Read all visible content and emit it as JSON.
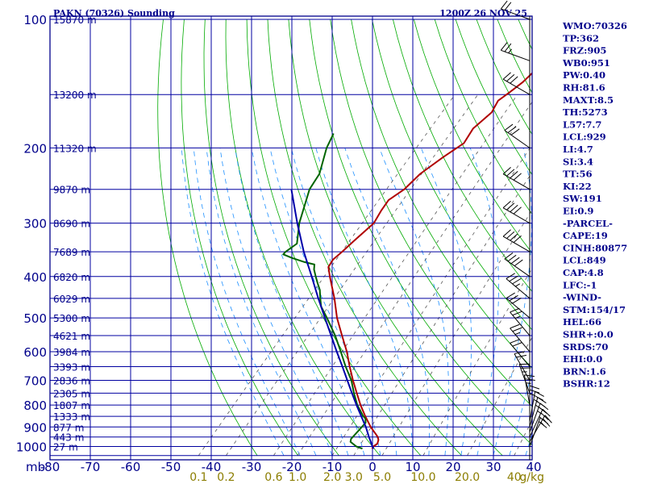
{
  "chart_data": {
    "type": "skew-t log-p sounding",
    "title_left": "PAKN (70326) Sounding",
    "title_right": "1200Z 26 NOV 25",
    "x_axis_unit_label": "mb",
    "temperature_ticks": [
      -80,
      -70,
      -60,
      -50,
      -40,
      -30,
      -20,
      -10,
      0,
      10,
      20,
      30,
      40
    ],
    "xlim_c": [
      -80,
      40
    ],
    "pressure_ticks": [
      100,
      200,
      300,
      400,
      500,
      600,
      700,
      800,
      900,
      1000
    ],
    "ylim_mb": [
      100,
      1050
    ],
    "height_labels": [
      {
        "p": 100,
        "label": "15870 m"
      },
      {
        "p": 150,
        "label": "13200 m"
      },
      {
        "p": 200,
        "label": "11320 m"
      },
      {
        "p": 250,
        "label": "9870 m"
      },
      {
        "p": 300,
        "label": "8690 m"
      },
      {
        "p": 350,
        "label": "7689 m"
      },
      {
        "p": 400,
        "label": "6820 m"
      },
      {
        "p": 450,
        "label": "6029 m"
      },
      {
        "p": 500,
        "label": "5300 m"
      },
      {
        "p": 550,
        "label": "4621 m"
      },
      {
        "p": 600,
        "label": "3984 m"
      },
      {
        "p": 650,
        "label": "3393 m"
      },
      {
        "p": 700,
        "label": "2836 m"
      },
      {
        "p": 750,
        "label": "2305 m"
      },
      {
        "p": 800,
        "label": "1807 m"
      },
      {
        "p": 850,
        "label": "1333 m"
      },
      {
        "p": 900,
        "label": "877 m"
      },
      {
        "p": 950,
        "label": "443 m"
      },
      {
        "p": 1000,
        "label": "27 m"
      }
    ],
    "mixing_ratio_labels": [
      "0.1",
      "0.2",
      "0.6",
      "1.0",
      "2.0",
      "3.0",
      "5.0",
      "10.0",
      "20.0",
      "40",
      "g/kg"
    ],
    "mixing_ratio_values": [
      0.1,
      0.2,
      0.6,
      1.0,
      2.0,
      3.0,
      5.0,
      10.0,
      20.0,
      40.0
    ],
    "series": [
      {
        "name": "temperature",
        "color": "#b00000",
        "points": [
          {
            "p": 1012,
            "t": 0.4
          },
          {
            "p": 1000,
            "t": 0.2
          },
          {
            "p": 985,
            "t": 0.6
          },
          {
            "p": 965,
            "t": 0.0
          },
          {
            "p": 950,
            "t": -0.8
          },
          {
            "p": 900,
            "t": -4.8
          },
          {
            "p": 850,
            "t": -8.5
          },
          {
            "p": 800,
            "t": -12.2
          },
          {
            "p": 750,
            "t": -15.8
          },
          {
            "p": 700,
            "t": -19.6
          },
          {
            "p": 650,
            "t": -23.5
          },
          {
            "p": 600,
            "t": -27.5
          },
          {
            "p": 550,
            "t": -32.3
          },
          {
            "p": 500,
            "t": -37.5
          },
          {
            "p": 450,
            "t": -42.5
          },
          {
            "p": 400,
            "t": -48.5
          },
          {
            "p": 380,
            "t": -51.0
          },
          {
            "p": 365,
            "t": -51.5
          },
          {
            "p": 350,
            "t": -51.0
          },
          {
            "p": 330,
            "t": -50.5
          },
          {
            "p": 300,
            "t": -49.5
          },
          {
            "p": 280,
            "t": -50.5
          },
          {
            "p": 265,
            "t": -51.0
          },
          {
            "p": 250,
            "t": -49.5
          },
          {
            "p": 230,
            "t": -49.0
          },
          {
            "p": 210,
            "t": -47.0
          },
          {
            "p": 195,
            "t": -45.0
          },
          {
            "p": 180,
            "t": -46.0
          },
          {
            "p": 165,
            "t": -45.0
          },
          {
            "p": 155,
            "t": -46.0
          },
          {
            "p": 148,
            "t": -45.0
          },
          {
            "p": 140,
            "t": -44.0
          },
          {
            "p": 120,
            "t": -43.0
          },
          {
            "p": 100,
            "t": -40.0
          }
        ]
      },
      {
        "name": "dewpoint",
        "color": "#006400",
        "points": [
          {
            "p": 1012,
            "t": -2.0
          },
          {
            "p": 1000,
            "t": -4.0
          },
          {
            "p": 975,
            "t": -6.5
          },
          {
            "p": 960,
            "t": -7.0
          },
          {
            "p": 950,
            "t": -7.0
          },
          {
            "p": 900,
            "t": -7.0
          },
          {
            "p": 880,
            "t": -7.0
          },
          {
            "p": 860,
            "t": -8.0
          },
          {
            "p": 850,
            "t": -9.0
          },
          {
            "p": 800,
            "t": -13.0
          },
          {
            "p": 750,
            "t": -16.5
          },
          {
            "p": 700,
            "t": -20.0
          },
          {
            "p": 650,
            "t": -24.5
          },
          {
            "p": 600,
            "t": -29.0
          },
          {
            "p": 550,
            "t": -34.0
          },
          {
            "p": 500,
            "t": -40.0
          },
          {
            "p": 470,
            "t": -44.0
          },
          {
            "p": 455,
            "t": -45.5
          },
          {
            "p": 445,
            "t": -46.5
          },
          {
            "p": 430,
            "t": -48.0
          },
          {
            "p": 415,
            "t": -50.0
          },
          {
            "p": 400,
            "t": -52.0
          },
          {
            "p": 385,
            "t": -54.0
          },
          {
            "p": 375,
            "t": -55.0
          },
          {
            "p": 370,
            "t": -58.0
          },
          {
            "p": 362,
            "t": -62.0
          },
          {
            "p": 355,
            "t": -65.0
          },
          {
            "p": 350,
            "t": -65.0
          },
          {
            "p": 335,
            "t": -64.0
          },
          {
            "p": 300,
            "t": -68.0
          },
          {
            "p": 250,
            "t": -73.0
          },
          {
            "p": 230,
            "t": -74.0
          },
          {
            "p": 200,
            "t": -78.0
          },
          {
            "p": 185,
            "t": -79.5
          }
        ]
      },
      {
        "name": "parcel",
        "color": "#0000aa",
        "points": [
          {
            "p": 1012,
            "t": 0.8
          },
          {
            "p": 1000,
            "t": 0.0
          },
          {
            "p": 950,
            "t": -3.0
          },
          {
            "p": 900,
            "t": -6.0
          },
          {
            "p": 850,
            "t": -9.5
          },
          {
            "p": 800,
            "t": -13.2
          },
          {
            "p": 750,
            "t": -17.0
          },
          {
            "p": 700,
            "t": -21.0
          },
          {
            "p": 650,
            "t": -25.3
          },
          {
            "p": 600,
            "t": -30.0
          },
          {
            "p": 550,
            "t": -35.0
          },
          {
            "p": 500,
            "t": -40.5
          },
          {
            "p": 450,
            "t": -46.5
          },
          {
            "p": 400,
            "t": -53.0
          },
          {
            "p": 350,
            "t": -60.5
          },
          {
            "p": 300,
            "t": -68.5
          },
          {
            "p": 250,
            "t": -77.5
          }
        ]
      }
    ],
    "wind_barbs": [
      {
        "p": 1000,
        "dir": 20,
        "spd": 20
      },
      {
        "p": 975,
        "dir": 30,
        "spd": 25
      },
      {
        "p": 950,
        "dir": 25,
        "spd": 25
      },
      {
        "p": 925,
        "dir": 20,
        "spd": 25
      },
      {
        "p": 900,
        "dir": 15,
        "spd": 30
      },
      {
        "p": 875,
        "dir": 10,
        "spd": 25
      },
      {
        "p": 850,
        "dir": 360,
        "spd": 25
      },
      {
        "p": 800,
        "dir": 350,
        "spd": 25
      },
      {
        "p": 750,
        "dir": 340,
        "spd": 25
      },
      {
        "p": 700,
        "dir": 330,
        "spd": 20
      },
      {
        "p": 650,
        "dir": 320,
        "spd": 20
      },
      {
        "p": 600,
        "dir": 320,
        "spd": 25
      },
      {
        "p": 550,
        "dir": 320,
        "spd": 25
      },
      {
        "p": 500,
        "dir": 310,
        "spd": 30
      },
      {
        "p": 450,
        "dir": 310,
        "spd": 35
      },
      {
        "p": 400,
        "dir": 305,
        "spd": 40
      },
      {
        "p": 350,
        "dir": 300,
        "spd": 40
      },
      {
        "p": 300,
        "dir": 300,
        "spd": 40
      },
      {
        "p": 250,
        "dir": 300,
        "spd": 40
      },
      {
        "p": 200,
        "dir": 305,
        "spd": 30
      },
      {
        "p": 150,
        "dir": 300,
        "spd": 30
      },
      {
        "p": 125,
        "dir": 290,
        "spd": 25
      },
      {
        "p": 100,
        "dir": 290,
        "spd": 20
      }
    ],
    "indices": [
      "WMO:70326",
      "TP:362",
      "FRZ:905",
      "WB0:951",
      "PW:0.40",
      "RH:81.6",
      "MAXT:8.5",
      "TH:5273",
      "L57:7.7",
      "LCL:929",
      "LI:4.7",
      "SI:3.4",
      "TT:56",
      "KI:22",
      "SW:191",
      "EI:0.9",
      "-PARCEL-",
      "CAPE:19",
      "CINH:80877",
      "LCL:849",
      "CAP:4.8",
      "LFC:-1",
      "-WIND-",
      "STM:154/17",
      "HEL:66",
      "SHR+:0.0",
      "SRDS:70",
      "EHI:0.0",
      "BRN:1.6",
      "BSHR:12"
    ],
    "colors": {
      "frame": "#00008b",
      "isobar_isotherm": "#0000a0",
      "dry_adiabat": "#00aa00",
      "moist_adiabat": "#1e90ff",
      "mixing_ratio": "#555555",
      "temperature": "#b00000",
      "dewpoint": "#006400",
      "parcel": "#0000aa",
      "mixing_label": "#8b7d00"
    }
  }
}
